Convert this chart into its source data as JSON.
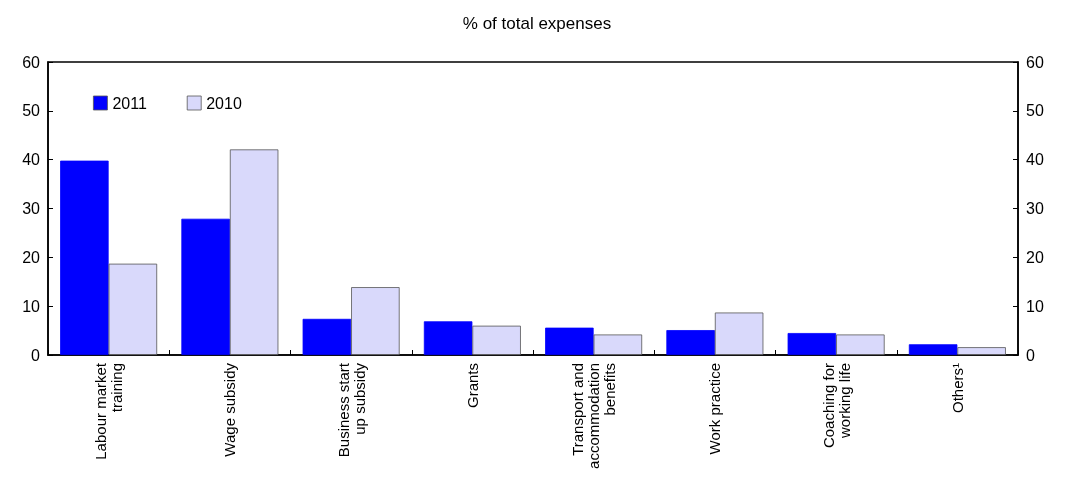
{
  "chart_data": {
    "type": "bar",
    "title": "% of total expenses",
    "categories": [
      "Labour market\ntraining",
      "Wage subsidy",
      "Business start\nup subsidy",
      "Grants",
      "Transport and\naccommodation\nbenefits",
      "Work practice",
      "Coaching for\nworking life",
      "Others¹"
    ],
    "series": [
      {
        "name": "2011",
        "color": "#0000ff",
        "values": [
          39.8,
          27.9,
          7.4,
          6.9,
          5.6,
          5.1,
          4.5,
          2.2
        ]
      },
      {
        "name": "2010",
        "color": "#d9d9fb",
        "values": [
          18.7,
          42.1,
          13.9,
          6.0,
          4.2,
          8.7,
          4.2,
          1.6
        ]
      }
    ],
    "ylim": [
      0,
      60
    ],
    "yticks": [
      0,
      10,
      20,
      30,
      40,
      50,
      60
    ],
    "y2lim": [
      0,
      60
    ],
    "y2ticks": [
      0,
      10,
      20,
      30,
      40,
      50,
      60
    ],
    "legend": "top left",
    "grid": false
  }
}
